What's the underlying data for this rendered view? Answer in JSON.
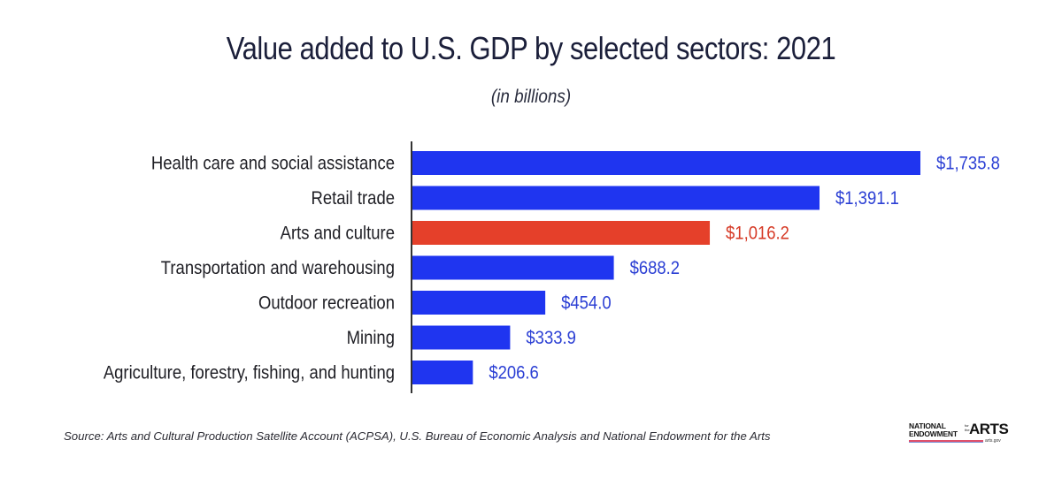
{
  "chart_data": {
    "type": "bar",
    "orientation": "horizontal",
    "title": "Value added to U.S. GDP by selected sectors: 2021",
    "subtitle": "(in billions)",
    "xlabel": "",
    "ylabel": "",
    "categories": [
      "Health care and social assistance",
      "Retail trade",
      "Arts and culture",
      "Transportation and warehousing",
      "Outdoor recreation",
      "Mining",
      "Agriculture, forestry, fishing, and hunting"
    ],
    "values": [
      1735.8,
      1391.1,
      1016.2,
      688.2,
      454.0,
      333.9,
      206.6
    ],
    "value_labels": [
      "$1,735.8",
      "$1,391.1",
      "$1,016.2",
      "$688.2",
      "$454.0",
      "$333.9",
      "$206.6"
    ],
    "highlight_index": 2,
    "colors": {
      "default_bar": "#1f35f0",
      "highlight_bar": "#e5402a",
      "default_label": "#2b3fd4",
      "highlight_label": "#d63a26",
      "axis": "#333333",
      "category_text": "#1e1e24"
    },
    "xlim": [
      0,
      1735.8
    ],
    "grid": false,
    "legend": "none"
  },
  "footer": {
    "source": "Source: Arts and Cultural Production Satellite Account (ACPSA), U.S. Bureau of Economic Analysis and National Endowment for the Arts"
  },
  "logo": {
    "line1": "NATIONAL",
    "line2": "ENDOWMENT",
    "for_the": "for the",
    "arts": "ARTS",
    "site": "arts.gov"
  }
}
